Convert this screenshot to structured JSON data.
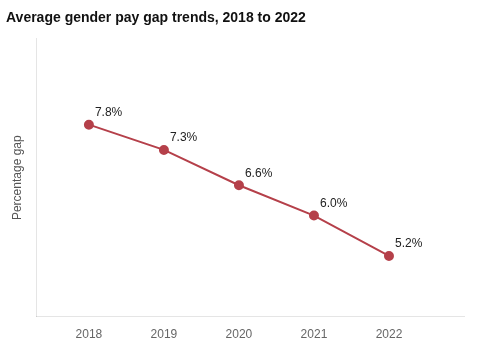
{
  "chart_data": {
    "type": "line",
    "title": "Average gender pay gap trends, 2018 to 2022",
    "x": [
      2018,
      2019,
      2020,
      2021,
      2022
    ],
    "values": [
      7.8,
      7.3,
      6.6,
      6.0,
      5.2
    ],
    "value_labels": [
      "7.8%",
      "7.3%",
      "6.6%",
      "6.0%",
      "5.2%"
    ],
    "color": "#b5404a",
    "ylabel": "Percentage gap",
    "xlim": [
      2017.3,
      2023.0
    ],
    "ylim": [
      4.0,
      9.5
    ],
    "xticks": [
      2018,
      2019,
      2020,
      2021,
      2022
    ],
    "tick_labels": "x",
    "data_labels": true,
    "grid": false,
    "marker": "circle"
  }
}
